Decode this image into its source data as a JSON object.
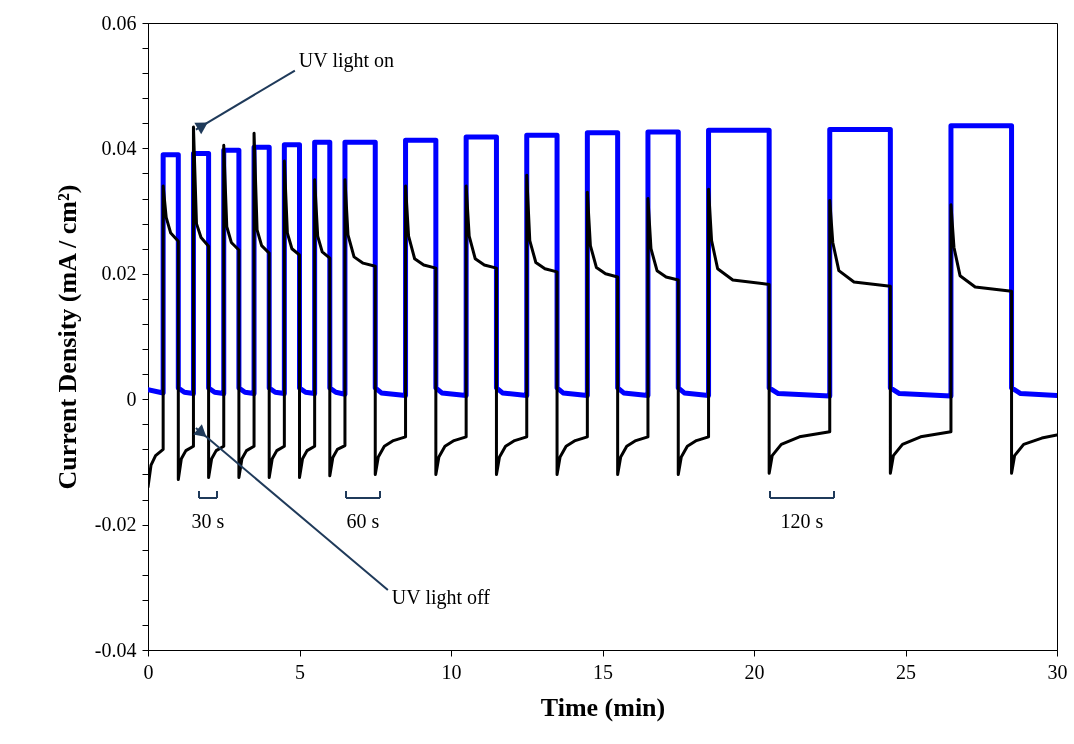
{
  "chart_data": {
    "type": "line",
    "xlabel": "Time (min)",
    "ylabel": "Current Density (mA / cm²)",
    "xlim": [
      0,
      30
    ],
    "xticks": [
      0,
      5,
      10,
      15,
      20,
      25,
      30
    ],
    "ylim": [
      -0.04,
      0.06
    ],
    "yticks": [
      -0.04,
      {
        "value": -0.036,
        "label": null
      },
      {
        "value": -0.032,
        "label": null
      },
      {
        "value": -0.028,
        "label": null
      },
      {
        "value": -0.024,
        "label": null
      },
      -0.02,
      {
        "value": -0.016,
        "label": null
      },
      {
        "value": -0.012,
        "label": null
      },
      {
        "value": -0.008,
        "label": null
      },
      {
        "value": -0.004,
        "label": null
      },
      0,
      {
        "value": 0.004,
        "label": null
      },
      {
        "value": 0.008,
        "label": null
      },
      {
        "value": 0.012,
        "label": null
      },
      {
        "value": 0.016,
        "label": null
      },
      0.02,
      {
        "value": 0.024,
        "label": null
      },
      {
        "value": 0.028,
        "label": null
      },
      {
        "value": 0.032,
        "label": null
      },
      {
        "value": 0.036,
        "label": null
      },
      0.04,
      {
        "value": 0.044,
        "label": null
      },
      {
        "value": 0.048,
        "label": null
      },
      {
        "value": 0.052,
        "label": null
      },
      {
        "value": 0.056,
        "label": null
      },
      0.06
    ],
    "grid": false,
    "marker": "none",
    "line_style": "solid",
    "series": [
      {
        "color": "#0000ff",
        "x": [
          0,
          0.5,
          0.5,
          1,
          1,
          1.2,
          1.5,
          1.5,
          2,
          2,
          2.2,
          2.5,
          2.5,
          3,
          3,
          3.2,
          3.5,
          3.5,
          4,
          4,
          4.2,
          4.5,
          4.5,
          5,
          5,
          5.2,
          5.5,
          5.5,
          6,
          6,
          6.2,
          6.5,
          6.5,
          7.5,
          7.5,
          7.7,
          8.5,
          8.5,
          9.5,
          9.5,
          9.7,
          10.5,
          10.5,
          11.5,
          11.5,
          11.7,
          12.5,
          12.5,
          13.5,
          13.5,
          13.7,
          14.5,
          14.5,
          15.5,
          15.5,
          15.7,
          16.5,
          16.5,
          17.5,
          17.5,
          17.7,
          18.5,
          18.5,
          20.5,
          20.5,
          20.8,
          22.5,
          22.5,
          24.5,
          24.5,
          24.8,
          26.5,
          26.5,
          28.5,
          28.5,
          28.8,
          30
        ],
        "values": [
          0.0015,
          0.001,
          0.039,
          0.039,
          0.0018,
          0.0011,
          0.0009,
          0.0392,
          0.0392,
          0.0018,
          0.0011,
          0.0009,
          0.0397,
          0.0397,
          0.0018,
          0.0011,
          0.0009,
          0.0402,
          0.0402,
          0.0018,
          0.0011,
          0.0009,
          0.0406,
          0.0406,
          0.0018,
          0.0011,
          0.0009,
          0.041,
          0.041,
          0.0018,
          0.0011,
          0.0008,
          0.041,
          0.041,
          0.0018,
          0.001,
          0.0006,
          0.0413,
          0.0413,
          0.0018,
          0.001,
          0.0006,
          0.0418,
          0.0418,
          0.0018,
          0.001,
          0.0006,
          0.0421,
          0.0421,
          0.0018,
          0.001,
          0.0006,
          0.0425,
          0.0425,
          0.0018,
          0.001,
          0.0006,
          0.0426,
          0.0426,
          0.0018,
          0.001,
          0.0006,
          0.0429,
          0.0429,
          0.0018,
          0.0009,
          0.0005,
          0.043,
          0.043,
          0.0018,
          0.0009,
          0.0005,
          0.0436,
          0.0436,
          0.0018,
          0.0009,
          0.0006
        ]
      },
      {
        "color": "#000000",
        "x": [
          0,
          0.1,
          0.25,
          0.5,
          0.5,
          0.6,
          0.75,
          1,
          1,
          1.1,
          1.25,
          1.5,
          1.5,
          1.6,
          1.75,
          2,
          2,
          2.1,
          2.25,
          2.5,
          2.5,
          2.6,
          2.75,
          3,
          3,
          3.1,
          3.25,
          3.5,
          3.5,
          3.6,
          3.75,
          4,
          4,
          4.1,
          4.25,
          4.5,
          4.5,
          4.6,
          4.75,
          5,
          5,
          5.1,
          5.25,
          5.5,
          5.5,
          5.6,
          5.75,
          6,
          6,
          6.1,
          6.25,
          6.5,
          6.5,
          6.6,
          6.8,
          7.1,
          7.5,
          7.5,
          7.6,
          7.8,
          8.1,
          8.5,
          8.5,
          8.6,
          8.8,
          9.1,
          9.5,
          9.5,
          9.6,
          9.8,
          10.1,
          10.5,
          10.5,
          10.6,
          10.8,
          11.1,
          11.5,
          11.5,
          11.6,
          11.8,
          12.1,
          12.5,
          12.5,
          12.6,
          12.8,
          13.1,
          13.5,
          13.5,
          13.6,
          13.8,
          14.1,
          14.5,
          14.5,
          14.6,
          14.8,
          15.1,
          15.5,
          15.5,
          15.6,
          15.8,
          16.1,
          16.5,
          16.5,
          16.6,
          16.8,
          17.1,
          17.5,
          17.5,
          17.6,
          17.8,
          18.1,
          18.5,
          18.5,
          18.6,
          18.8,
          19.3,
          20.5,
          20.5,
          20.6,
          20.9,
          21.5,
          22.5,
          22.5,
          22.6,
          22.8,
          23.3,
          24.5,
          24.5,
          24.6,
          24.9,
          25.5,
          26.5,
          26.5,
          26.6,
          26.8,
          27.3,
          28.5,
          28.5,
          28.6,
          28.9,
          29.5,
          30
        ],
        "values": [
          -0.014,
          -0.0105,
          -0.009,
          -0.008,
          0.034,
          0.029,
          0.0265,
          0.0252,
          -0.0128,
          -0.0095,
          -0.0082,
          -0.0075,
          0.0434,
          0.028,
          0.0258,
          0.0244,
          -0.0125,
          -0.0095,
          -0.0082,
          -0.0075,
          0.0405,
          0.0275,
          0.025,
          0.0238,
          -0.0125,
          -0.0095,
          -0.0082,
          -0.0075,
          0.0424,
          0.027,
          0.0245,
          0.0233,
          -0.0125,
          -0.0095,
          -0.0082,
          -0.0075,
          0.038,
          0.0265,
          0.024,
          0.023,
          -0.0125,
          -0.0095,
          -0.0082,
          -0.0075,
          0.035,
          0.026,
          0.0235,
          0.0225,
          -0.0122,
          -0.0093,
          -0.008,
          -0.0074,
          0.035,
          0.0262,
          0.0227,
          0.0217,
          0.0212,
          -0.012,
          -0.0092,
          -0.0075,
          -0.0066,
          -0.006,
          0.034,
          0.026,
          0.0224,
          0.0214,
          0.0209,
          -0.012,
          -0.0092,
          -0.0075,
          -0.0066,
          -0.006,
          0.034,
          0.026,
          0.0224,
          0.0214,
          0.0209,
          -0.012,
          -0.0092,
          -0.0075,
          -0.0066,
          -0.006,
          0.0357,
          0.0253,
          0.0218,
          0.0208,
          0.0203,
          -0.012,
          -0.0092,
          -0.0075,
          -0.0066,
          -0.006,
          0.033,
          0.0245,
          0.021,
          0.02,
          0.0195,
          -0.012,
          -0.0092,
          -0.0075,
          -0.0066,
          -0.006,
          0.032,
          0.024,
          0.0205,
          0.0195,
          0.019,
          -0.012,
          -0.0092,
          -0.0075,
          -0.0066,
          -0.006,
          0.0335,
          0.0253,
          0.0208,
          0.019,
          0.0183,
          -0.0118,
          -0.009,
          -0.0072,
          -0.006,
          -0.0052,
          0.0317,
          0.025,
          0.0205,
          0.0187,
          0.018,
          -0.0118,
          -0.009,
          -0.0072,
          -0.006,
          -0.0052,
          0.031,
          0.0242,
          0.0197,
          0.0179,
          0.0172,
          -0.0118,
          -0.009,
          -0.0072,
          -0.0062,
          -0.0057
        ]
      }
    ],
    "annotations": [
      {
        "text": "UV light on",
        "x": 1.58,
        "y": 0.043
      },
      {
        "text": "UV light off",
        "x": 1.58,
        "y": -0.0046
      },
      "30 s",
      "60 s",
      "120 s"
    ]
  }
}
